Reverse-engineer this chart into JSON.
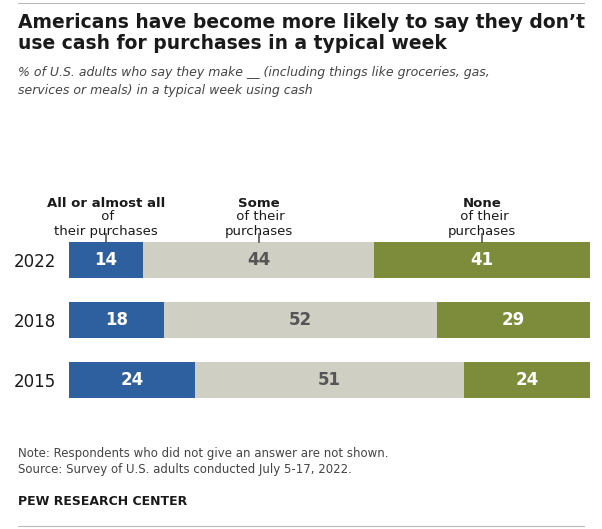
{
  "title_line1": "Americans have become more likely to say they don’t",
  "title_line2": "use cash for purchases in a typical week",
  "subtitle": "% of U.S. adults who say they make __ (including things like groceries, gas,\nservices or meals) in a typical week using cash",
  "years": [
    "2022",
    "2018",
    "2015"
  ],
  "segments": {
    "all_or_almost": [
      14,
      18,
      24
    ],
    "some": [
      44,
      52,
      51
    ],
    "none": [
      41,
      29,
      24
    ]
  },
  "colors": {
    "all_or_almost": "#2e5f9e",
    "some": "#d0cfc4",
    "none": "#7d8c3b"
  },
  "col_labels": [
    {
      "bold": "All or almost all",
      "rest": " of\ntheir purchases",
      "midpoint": 7.0
    },
    {
      "bold": "Some",
      "rest": " of their\npurchases",
      "midpoint": 36.0
    },
    {
      "bold": "None",
      "rest": " of their\npurchases",
      "midpoint": 70.5
    }
  ],
  "note_line1": "Note: Respondents who did not give an answer are not shown.",
  "note_line2": "Source: Survey of U.S. adults conducted July 5-17, 2022.",
  "source_label": "PEW RESEARCH CENTER",
  "bg_color": "#ffffff",
  "text_color_dark": "#1a1a1a",
  "text_color_light": "#ffffff",
  "text_color_some": "#555555"
}
